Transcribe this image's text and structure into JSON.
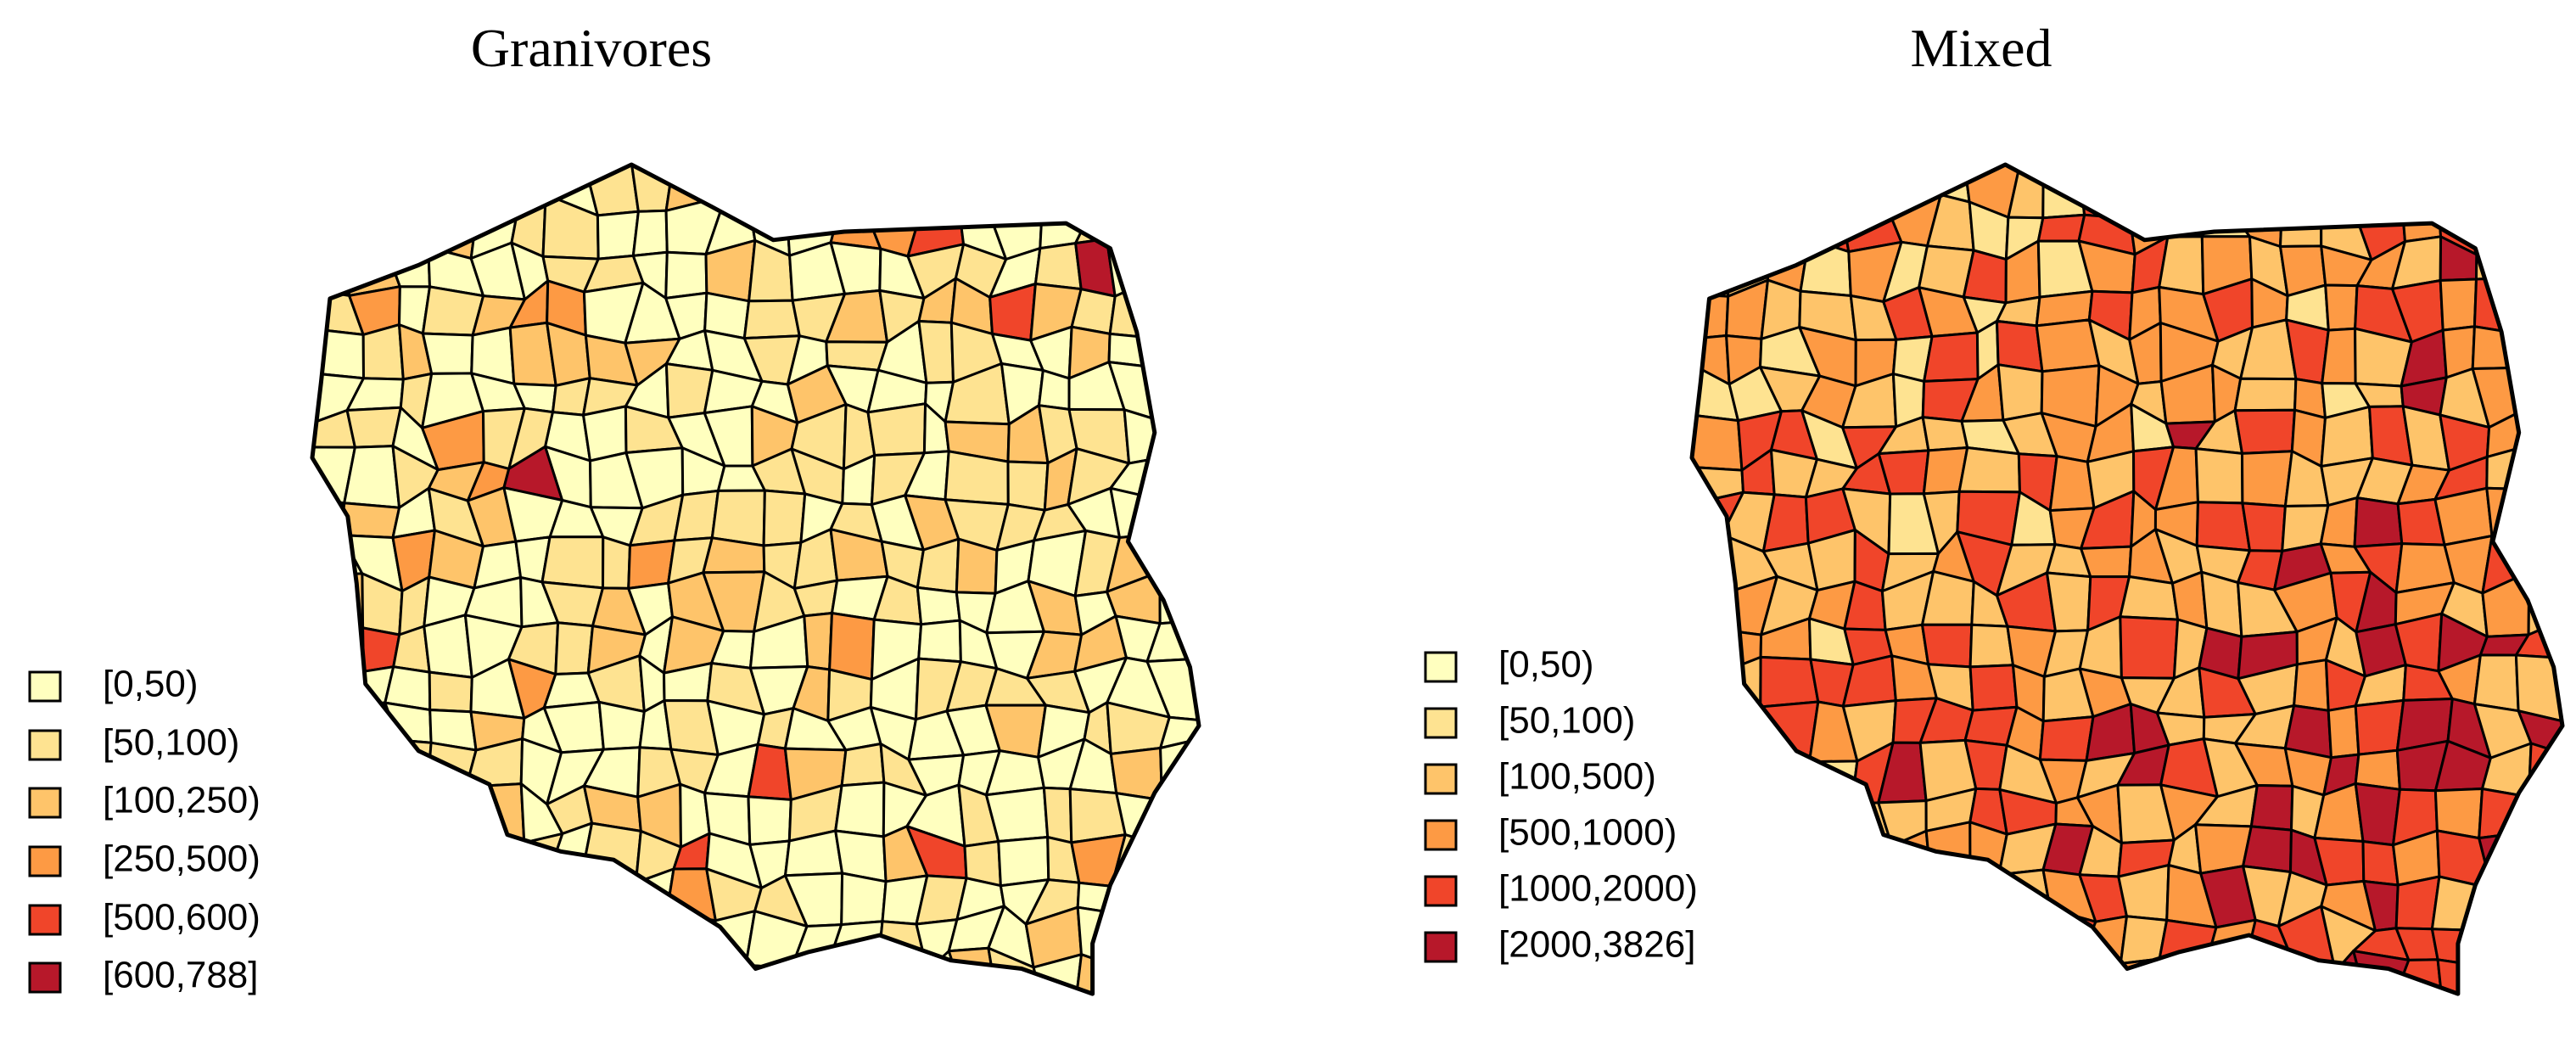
{
  "maps": [
    {
      "title": "Granivores",
      "legend": [
        {
          "label": "[0,50)",
          "color": "#ffffbf"
        },
        {
          "label": "[50,100)",
          "color": "#fee391"
        },
        {
          "label": "[100,250)",
          "color": "#fec46a"
        },
        {
          "label": "[250,500)",
          "color": "#fd9a44"
        },
        {
          "label": "[500,600)",
          "color": "#f0452a"
        },
        {
          "label": "[600,788]",
          "color": "#b7182a"
        }
      ]
    },
    {
      "title": "Mixed",
      "legend": [
        {
          "label": "[0,50)",
          "color": "#ffffbf"
        },
        {
          "label": "[50,100)",
          "color": "#fee391"
        },
        {
          "label": "[100,500)",
          "color": "#fec46a"
        },
        {
          "label": "[500,1000)",
          "color": "#fd9a44"
        },
        {
          "label": "[1000,2000)",
          "color": "#f0452a"
        },
        {
          "label": "[2000,3826]",
          "color": "#b7182a"
        }
      ]
    }
  ]
}
